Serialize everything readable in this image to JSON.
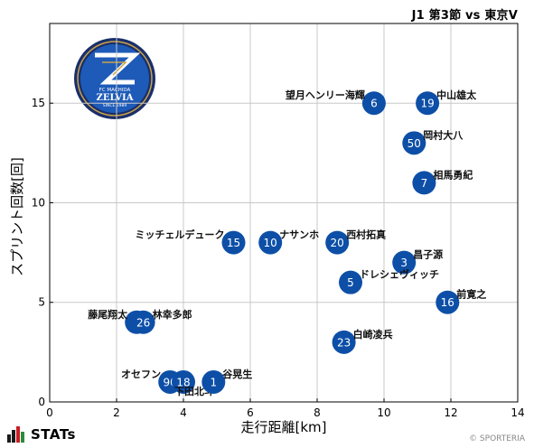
{
  "header": {
    "title": "J1 第3節 vs 東京V"
  },
  "footer": {
    "brand": "STATs",
    "copyright": "© SPORTERIA"
  },
  "colors": {
    "marker": "#0d4fa7",
    "grid": "#c8c8c8",
    "emblem_navy": "#1a2f6b",
    "emblem_blue": "#1e5bb8",
    "emblem_gold": "#c9a34a"
  },
  "emblem": {
    "text_top": "FC MACHIDA",
    "text_main": "ZELVIA",
    "text_bottom": "SINCE 1989"
  },
  "chart_data": {
    "type": "scatter",
    "title": "",
    "xlabel": "走行距離[km]",
    "ylabel": "スプリント回数[回]",
    "xlim": [
      0,
      14
    ],
    "ylim": [
      0,
      19
    ],
    "xticks": [
      0,
      2,
      4,
      6,
      8,
      10,
      12,
      14
    ],
    "yticks": [
      0,
      5,
      10,
      15
    ],
    "grid": true,
    "points": [
      {
        "number": "6",
        "name": "望月ヘンリー海輝",
        "x": 9.7,
        "y": 15,
        "label_side": "left"
      },
      {
        "number": "19",
        "name": "中山雄太",
        "x": 11.3,
        "y": 15,
        "label_side": "right"
      },
      {
        "number": "50",
        "name": "岡村大八",
        "x": 10.9,
        "y": 13,
        "label_side": "right"
      },
      {
        "number": "7",
        "name": "相馬勇紀",
        "x": 11.2,
        "y": 11,
        "label_side": "right"
      },
      {
        "number": "15",
        "name": "ミッチェルデューク",
        "x": 5.5,
        "y": 8,
        "label_side": "left"
      },
      {
        "number": "10",
        "name": "ナサンホ",
        "x": 6.6,
        "y": 8,
        "label_side": "right"
      },
      {
        "number": "20",
        "name": "西村拓真",
        "x": 8.6,
        "y": 8,
        "label_side": "right"
      },
      {
        "number": "3",
        "name": "昌子源",
        "x": 10.6,
        "y": 7,
        "label_side": "right"
      },
      {
        "number": "5",
        "name": "ドレシェヴィッチ",
        "x": 9.0,
        "y": 6,
        "label_side": "right"
      },
      {
        "number": "16",
        "name": "前寛之",
        "x": 11.9,
        "y": 5,
        "label_side": "right"
      },
      {
        "number": "9",
        "name": "藤尾翔太",
        "x": 2.6,
        "y": 4,
        "label_side": "left"
      },
      {
        "number": "26",
        "name": "林幸多郎",
        "x": 2.8,
        "y": 4,
        "label_side": "right"
      },
      {
        "number": "23",
        "name": "白崎凌兵",
        "x": 8.8,
        "y": 3,
        "label_side": "right"
      },
      {
        "number": "90",
        "name": "オセフン",
        "x": 3.6,
        "y": 1,
        "label_side": "left"
      },
      {
        "number": "18",
        "name": "下田北斗",
        "x": 4.0,
        "y": 1,
        "label_side": "below"
      },
      {
        "number": "1",
        "name": "谷晃生",
        "x": 4.9,
        "y": 1,
        "label_side": "right"
      }
    ]
  }
}
